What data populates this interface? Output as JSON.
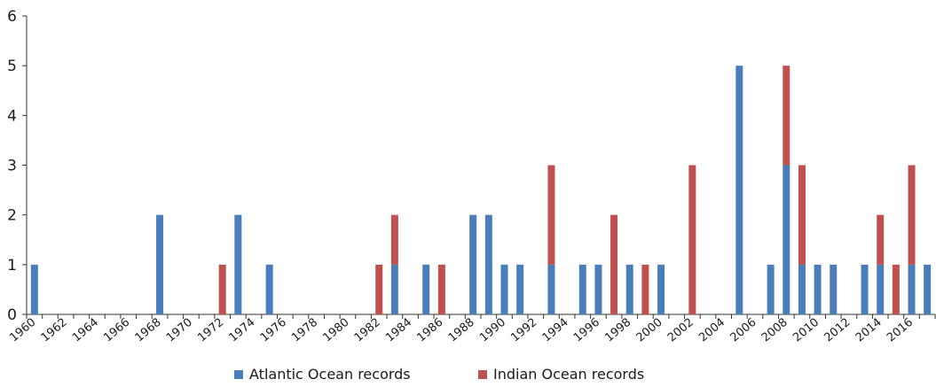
{
  "chart_data": {
    "type": "bar",
    "stacked": true,
    "categories": [
      "1960",
      "1961",
      "1962",
      "1963",
      "1964",
      "1965",
      "1966",
      "1967",
      "1968",
      "1969",
      "1970",
      "1971",
      "1972",
      "1973",
      "1974",
      "1975",
      "1976",
      "1977",
      "1978",
      "1979",
      "1980",
      "1981",
      "1982",
      "1983",
      "1984",
      "1985",
      "1986",
      "1987",
      "1988",
      "1989",
      "1990",
      "1991",
      "1992",
      "1993",
      "1994",
      "1995",
      "1996",
      "1997",
      "1998",
      "1999",
      "2000",
      "2001",
      "2002",
      "2003",
      "2004",
      "2005",
      "2006",
      "2007",
      "2008",
      "2009",
      "2010",
      "2011",
      "2012",
      "2013",
      "2014",
      "2015",
      "2016",
      "2017"
    ],
    "x_tick_labels": [
      "1960",
      "1962",
      "1964",
      "1966",
      "1968",
      "1970",
      "1972",
      "1974",
      "1976",
      "1978",
      "1980",
      "1982",
      "1984",
      "1986",
      "1988",
      "1990",
      "1992",
      "1994",
      "1996",
      "1998",
      "2000",
      "2002",
      "2004",
      "2006",
      "2008",
      "2010",
      "2012",
      "2014",
      "2016"
    ],
    "series": [
      {
        "name": "Atlantic Ocean records",
        "color": "#4a7ebb",
        "values": [
          1,
          0,
          0,
          0,
          0,
          0,
          0,
          0,
          2,
          0,
          0,
          0,
          0,
          2,
          0,
          1,
          0,
          0,
          0,
          0,
          0,
          0,
          0,
          1,
          0,
          1,
          0,
          0,
          2,
          2,
          1,
          1,
          0,
          1,
          0,
          1,
          1,
          0,
          1,
          0,
          1,
          0,
          0,
          0,
          0,
          5,
          0,
          1,
          3,
          1,
          1,
          1,
          0,
          1,
          1,
          0,
          1,
          1
        ]
      },
      {
        "name": "Indian Ocean records",
        "color": "#c0504d",
        "values": [
          0,
          0,
          0,
          0,
          0,
          0,
          0,
          0,
          0,
          0,
          0,
          0,
          1,
          0,
          0,
          0,
          0,
          0,
          0,
          0,
          0,
          0,
          1,
          1,
          0,
          0,
          1,
          0,
          0,
          0,
          0,
          0,
          0,
          2,
          0,
          0,
          0,
          2,
          0,
          1,
          0,
          0,
          3,
          0,
          0,
          0,
          0,
          0,
          2,
          2,
          0,
          0,
          0,
          0,
          1,
          1,
          2,
          0
        ]
      }
    ],
    "y_tick_labels": [
      "0",
      "1",
      "2",
      "3",
      "4",
      "5",
      "6"
    ],
    "ylim": [
      0,
      6
    ],
    "grid": false,
    "legend_position": "bottom"
  }
}
